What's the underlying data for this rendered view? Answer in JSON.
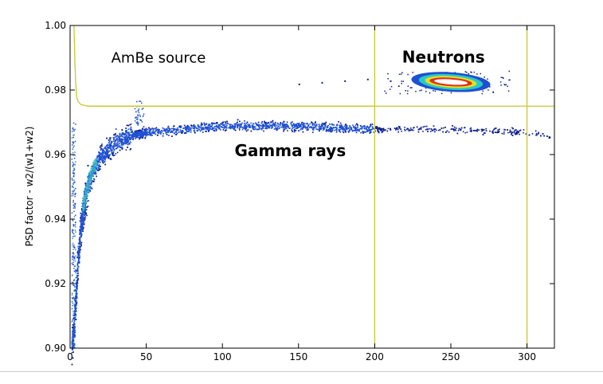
{
  "chart_data": {
    "type": "scatter",
    "title": "",
    "xlabel": "",
    "ylabel": "PSD factor - w2/(w1+w2)",
    "xlim": [
      0,
      318
    ],
    "ylim": [
      0.9,
      1.0
    ],
    "x_ticks": [
      0,
      50,
      100,
      150,
      200,
      250,
      300
    ],
    "y_ticks": [
      0.9,
      0.92,
      0.94,
      0.96,
      0.98,
      1.0
    ],
    "x_tick_labels": [
      "0",
      "50",
      "100",
      "150",
      "200",
      "250",
      "300"
    ],
    "y_tick_labels": [
      "0.90",
      "0.92",
      "0.94",
      "0.96",
      "0.98",
      "1.00"
    ],
    "grid": false,
    "legend": "none",
    "annotations": [
      {
        "text": "AmBe source",
        "x": 27,
        "y": 0.9885,
        "weight": "normal"
      },
      {
        "text": "Neutrons",
        "x": 218,
        "y": 0.9885,
        "weight": "bold"
      },
      {
        "text": "Gamma rays",
        "x": 108,
        "y": 0.9595,
        "weight": "bold"
      }
    ],
    "cut_lines": {
      "color": "#c8c832",
      "vertical_x": [
        200,
        300
      ],
      "horizontal_y": 0.975,
      "threshold_curve": [
        [
          2.5,
          1.0
        ],
        [
          2.8,
          0.995
        ],
        [
          3.2,
          0.988
        ],
        [
          3.7,
          0.982
        ],
        [
          4.3,
          0.978
        ],
        [
          5.2,
          0.9765
        ],
        [
          7,
          0.9755
        ],
        [
          12,
          0.975
        ],
        [
          200,
          0.975
        ]
      ]
    },
    "series": [
      {
        "description": "gamma band",
        "colors": [
          "#0c1f8a",
          "#1e50d2",
          "#2e86d8",
          "#3cc2c4"
        ],
        "centerline": [
          [
            0.8,
            0.901
          ],
          [
            2,
            0.905
          ],
          [
            3,
            0.912
          ],
          [
            4,
            0.92
          ],
          [
            5,
            0.928
          ],
          [
            7,
            0.938
          ],
          [
            10,
            0.947
          ],
          [
            15,
            0.955
          ],
          [
            20,
            0.96
          ],
          [
            30,
            0.964
          ],
          [
            40,
            0.966
          ],
          [
            50,
            0.967
          ],
          [
            75,
            0.968
          ],
          [
            100,
            0.969
          ],
          [
            150,
            0.969
          ],
          [
            200,
            0.968
          ],
          [
            250,
            0.968
          ],
          [
            300,
            0.967
          ],
          [
            315,
            0.966
          ]
        ],
        "dense_core": [
          [
            8,
            0.943
          ],
          [
            10,
            0.948
          ],
          [
            12,
            0.952
          ],
          [
            14,
            0.955
          ],
          [
            17,
            0.958
          ]
        ]
      },
      {
        "description": "neutron cluster",
        "colors": [
          "#0c1f8a",
          "#1e50d2",
          "#2ac8c8",
          "#e0e020",
          "#e03020",
          "#ffffff"
        ],
        "center": [
          250,
          0.9825
        ],
        "x_extent": [
          205,
          290
        ],
        "y_extent": [
          0.979,
          0.986
        ]
      }
    ]
  }
}
